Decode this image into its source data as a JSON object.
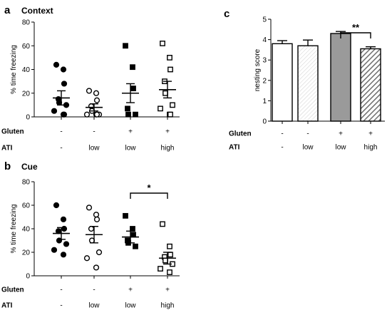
{
  "chart_data": [
    {
      "panel": "a",
      "title": "Context",
      "type": "scatter",
      "ylabel": "% time freezing",
      "ylim": [
        0,
        80
      ],
      "yticks": [
        0,
        20,
        40,
        60,
        80
      ],
      "row_labels": [
        "Gluten",
        "ATI"
      ],
      "groups": [
        {
          "gluten": "-",
          "ati": "-",
          "marker": "filled-circle",
          "mean": 16,
          "sem": 6,
          "points": [
            44,
            40,
            28,
            15,
            12,
            10,
            5,
            2,
            2
          ]
        },
        {
          "gluten": "-",
          "ati": "low",
          "marker": "open-circle",
          "mean": 8,
          "sem": 3,
          "points": [
            22,
            20,
            14,
            9,
            5,
            2,
            2,
            2,
            2
          ]
        },
        {
          "gluten": "+",
          "ati": "low",
          "marker": "filled-square",
          "mean": 20,
          "sem": 8,
          "points": [
            60,
            42,
            24,
            7,
            2,
            2
          ]
        },
        {
          "gluten": "+",
          "ati": "high",
          "marker": "open-square",
          "mean": 23,
          "sem": 7,
          "points": [
            62,
            50,
            40,
            30,
            20,
            10,
            7,
            2,
            2
          ]
        }
      ]
    },
    {
      "panel": "b",
      "title": "Cue",
      "type": "scatter",
      "ylabel": "% time freezing",
      "ylim": [
        0,
        80
      ],
      "yticks": [
        0,
        20,
        40,
        60,
        80
      ],
      "row_labels": [
        "Gluten",
        "ATI"
      ],
      "significance": {
        "from": 2,
        "to": 3,
        "label": "*"
      },
      "groups": [
        {
          "gluten": "-",
          "ati": "-",
          "marker": "filled-circle",
          "mean": 36,
          "sem": 5,
          "points": [
            60,
            48,
            40,
            38,
            30,
            27,
            22,
            18
          ]
        },
        {
          "gluten": "-",
          "ati": "low",
          "marker": "open-circle",
          "mean": 35,
          "sem": 7,
          "points": [
            58,
            52,
            48,
            40,
            30,
            20,
            15,
            7
          ]
        },
        {
          "gluten": "+",
          "ati": "low",
          "marker": "filled-square",
          "mean": 33,
          "sem": 5,
          "points": [
            51,
            40,
            35,
            30,
            28,
            25
          ]
        },
        {
          "gluten": "+",
          "ati": "high",
          "marker": "open-square",
          "mean": 15,
          "sem": 5,
          "points": [
            44,
            25,
            18,
            16,
            13,
            10,
            6,
            3
          ]
        }
      ]
    },
    {
      "panel": "c",
      "title": "",
      "type": "bar",
      "ylabel": "nesting score",
      "ylim": [
        0,
        5
      ],
      "yticks": [
        0,
        1,
        2,
        3,
        4,
        5
      ],
      "row_labels": [
        "Gluten",
        "ATI"
      ],
      "significance": {
        "from": 2,
        "to": 3,
        "label": "**"
      },
      "groups": [
        {
          "gluten": "-",
          "ati": "-",
          "fill": "white",
          "value": 3.8,
          "sem": 0.15
        },
        {
          "gluten": "-",
          "ati": "low",
          "fill": "light-hatch",
          "value": 3.7,
          "sem": 0.28
        },
        {
          "gluten": "+",
          "ati": "low",
          "fill": "gray",
          "value": 4.3,
          "sem": 0.1
        },
        {
          "gluten": "+",
          "ati": "high",
          "fill": "dark-hatch",
          "value": 3.55,
          "sem": 0.1
        }
      ]
    }
  ],
  "colors": {
    "gray_bar": "#9a9a9a",
    "dark_hatch": "#6e6e6e",
    "light_hatch": "#c8c8c8",
    "axis": "#000000"
  }
}
